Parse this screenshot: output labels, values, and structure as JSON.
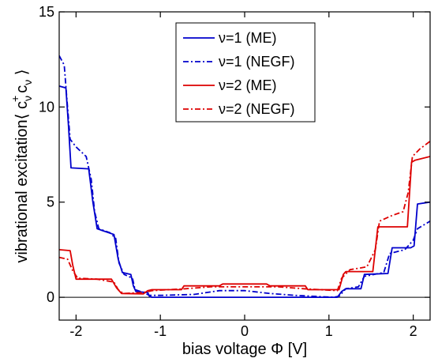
{
  "chart_data": {
    "type": "line",
    "xlabel": "bias voltage Φ [V]",
    "ylabel_main": "vibrational excitation",
    "ylabel_bracket_open": "⟨ ",
    "ylabel_c": "c",
    "ylabel_dagger": "+",
    "ylabel_nu": "ν",
    "ylabel_bracket_close": " ⟩",
    "xlim": [
      -2.2,
      2.2
    ],
    "ylim": [
      -1.2,
      15
    ],
    "xticks": [
      -2,
      -1,
      0,
      1,
      2
    ],
    "xtick_labels": [
      "-2",
      "-1",
      "0",
      "1",
      "2"
    ],
    "yticks": [
      0,
      5,
      10,
      15
    ],
    "ytick_labels": [
      "0",
      "5",
      "10",
      "15"
    ],
    "zero_line": true,
    "grid": false,
    "legend_position": "top-center",
    "series": [
      {
        "name": "ν=1 (ME)",
        "color": "#0000cc",
        "dash": "solid",
        "points": [
          [
            -2.2,
            11.1
          ],
          [
            -2.12,
            11.0
          ],
          [
            -2.09,
            9.0
          ],
          [
            -2.06,
            6.8
          ],
          [
            -1.85,
            6.75
          ],
          [
            -1.8,
            5.0
          ],
          [
            -1.75,
            3.6
          ],
          [
            -1.55,
            3.3
          ],
          [
            -1.5,
            2.0
          ],
          [
            -1.45,
            1.3
          ],
          [
            -1.35,
            1.2
          ],
          [
            -1.32,
            0.6
          ],
          [
            -1.29,
            0.3
          ],
          [
            -1.15,
            0.25
          ],
          [
            -1.13,
            0.05
          ],
          [
            -1.1,
            0.0
          ],
          [
            1.1,
            0.0
          ],
          [
            1.15,
            0.3
          ],
          [
            1.2,
            0.45
          ],
          [
            1.38,
            0.45
          ],
          [
            1.42,
            1.2
          ],
          [
            1.7,
            1.25
          ],
          [
            1.75,
            2.6
          ],
          [
            1.97,
            2.6
          ],
          [
            2.01,
            2.7
          ],
          [
            2.05,
            4.9
          ],
          [
            2.2,
            5.0
          ]
        ]
      },
      {
        "name": "ν=1 (NEGF)",
        "color": "#0000cc",
        "dash": "7,3,2,3",
        "points": [
          [
            -2.2,
            12.7
          ],
          [
            -2.14,
            12.2
          ],
          [
            -2.11,
            10.5
          ],
          [
            -2.07,
            8.3
          ],
          [
            -2.0,
            7.9
          ],
          [
            -1.88,
            7.4
          ],
          [
            -1.82,
            6.2
          ],
          [
            -1.78,
            4.5
          ],
          [
            -1.73,
            3.6
          ],
          [
            -1.6,
            3.4
          ],
          [
            -1.53,
            3.1
          ],
          [
            -1.49,
            1.8
          ],
          [
            -1.43,
            1.2
          ],
          [
            -1.33,
            1.0
          ],
          [
            -1.3,
            0.4
          ],
          [
            -1.2,
            0.25
          ],
          [
            -1.13,
            0.1
          ],
          [
            -1.0,
            0.1
          ],
          [
            -0.6,
            0.15
          ],
          [
            -0.3,
            0.35
          ],
          [
            0.0,
            0.35
          ],
          [
            0.3,
            0.2
          ],
          [
            0.6,
            0.1
          ],
          [
            1.05,
            0.0
          ],
          [
            1.12,
            0.05
          ],
          [
            1.2,
            0.45
          ],
          [
            1.35,
            0.55
          ],
          [
            1.42,
            1.1
          ],
          [
            1.65,
            1.3
          ],
          [
            1.72,
            2.3
          ],
          [
            1.9,
            2.5
          ],
          [
            2.0,
            3.0
          ],
          [
            2.05,
            3.6
          ],
          [
            2.2,
            4.0
          ]
        ]
      },
      {
        "name": "ν=2 (ME)",
        "color": "#dd0000",
        "dash": "solid",
        "points": [
          [
            -2.2,
            2.5
          ],
          [
            -2.07,
            2.45
          ],
          [
            -2.04,
            1.7
          ],
          [
            -2.0,
            0.95
          ],
          [
            -1.58,
            0.95
          ],
          [
            -1.52,
            0.5
          ],
          [
            -1.46,
            0.2
          ],
          [
            -1.2,
            0.18
          ],
          [
            -1.15,
            0.35
          ],
          [
            -1.1,
            0.4
          ],
          [
            -0.75,
            0.4
          ],
          [
            -0.72,
            0.6
          ],
          [
            -0.3,
            0.6
          ],
          [
            -0.26,
            0.7
          ],
          [
            0.26,
            0.7
          ],
          [
            0.3,
            0.6
          ],
          [
            0.72,
            0.6
          ],
          [
            0.75,
            0.4
          ],
          [
            1.12,
            0.4
          ],
          [
            1.17,
            1.2
          ],
          [
            1.2,
            1.35
          ],
          [
            1.52,
            1.35
          ],
          [
            1.58,
            3.7
          ],
          [
            1.93,
            3.7
          ],
          [
            1.98,
            7.1
          ],
          [
            2.02,
            7.2
          ],
          [
            2.2,
            7.4
          ]
        ]
      },
      {
        "name": "ν=2 (NEGF)",
        "color": "#dd0000",
        "dash": "7,3,2,3",
        "points": [
          [
            -2.2,
            2.1
          ],
          [
            -2.1,
            2.0
          ],
          [
            -2.04,
            1.4
          ],
          [
            -1.98,
            1.0
          ],
          [
            -1.75,
            0.95
          ],
          [
            -1.55,
            0.8
          ],
          [
            -1.5,
            0.4
          ],
          [
            -1.44,
            0.2
          ],
          [
            -1.2,
            0.25
          ],
          [
            -1.1,
            0.35
          ],
          [
            -0.7,
            0.45
          ],
          [
            -0.4,
            0.55
          ],
          [
            0.0,
            0.55
          ],
          [
            0.4,
            0.55
          ],
          [
            0.7,
            0.45
          ],
          [
            1.1,
            0.35
          ],
          [
            1.15,
            1.0
          ],
          [
            1.25,
            1.45
          ],
          [
            1.45,
            1.6
          ],
          [
            1.55,
            2.5
          ],
          [
            1.6,
            4.0
          ],
          [
            1.75,
            4.3
          ],
          [
            1.88,
            4.5
          ],
          [
            1.94,
            5.5
          ],
          [
            1.99,
            7.4
          ],
          [
            2.08,
            7.8
          ],
          [
            2.2,
            8.2
          ]
        ]
      }
    ]
  }
}
